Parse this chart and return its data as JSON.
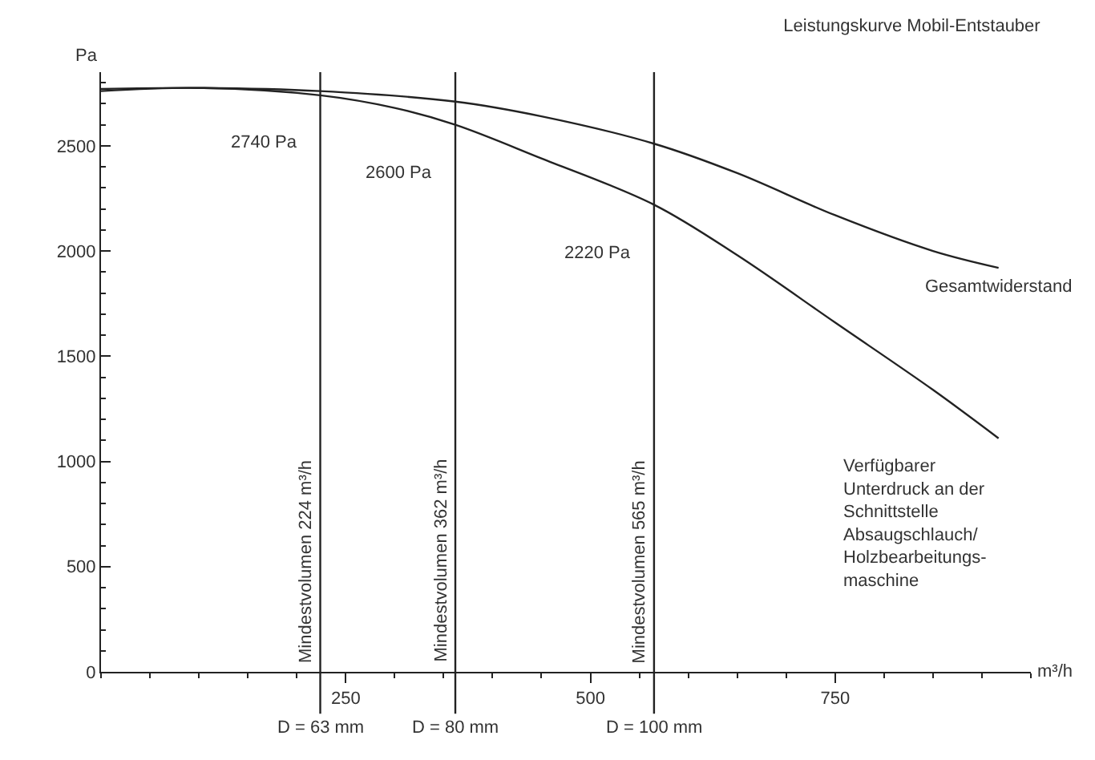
{
  "chart_data": {
    "type": "line",
    "title": "Leistungskurve Mobil-Entstauber",
    "xlabel": "m³/h",
    "ylabel": "Pa",
    "xlim": [
      0,
      950
    ],
    "xticks": [
      250,
      500,
      750
    ],
    "ylim": [
      0,
      2850
    ],
    "yticks": [
      0,
      500,
      1000,
      1500,
      2000,
      2500
    ],
    "legend": false,
    "marker": "none",
    "line_style": "solid",
    "series": [
      {
        "name": "Gesamtwiderstand",
        "color": "#222222",
        "x": [
          0,
          100,
          224,
          362,
          450,
          565,
          650,
          750,
          850,
          917
        ],
        "values": [
          2770,
          2775,
          2760,
          2710,
          2640,
          2510,
          2370,
          2170,
          2000,
          1920
        ]
      },
      {
        "name": "Verfügbarer\nUnterdruck an der\nSchnittstelle\nAbsaugschlauch/\nHolzbearbeitungs-\nmaschine",
        "color": "#222222",
        "x": [
          0,
          100,
          224,
          300,
          362,
          450,
          565,
          650,
          750,
          850,
          917
        ],
        "values": [
          2760,
          2775,
          2740,
          2680,
          2600,
          2440,
          2220,
          1980,
          1660,
          1340,
          1110
        ]
      }
    ],
    "ref_lines": [
      {
        "axis": "x",
        "value": 224,
        "label": "Mindestvolumen 224 m³/h",
        "color": "#222222"
      },
      {
        "axis": "x",
        "value": 362,
        "label": "Mindestvolumen 362 m³/h",
        "color": "#222222"
      },
      {
        "axis": "x",
        "value": 565,
        "label": "Mindestvolumen 565 m³/h",
        "color": "#222222"
      }
    ],
    "annotations": [
      {
        "text": "2740 Pa",
        "x": 224,
        "y": 2740
      },
      {
        "text": "2600 Pa",
        "x": 362,
        "y": 2600
      },
      {
        "text": "2220 Pa",
        "x": 565,
        "y": 2220
      },
      "D = 63 mm",
      "D = 80 mm",
      "D = 100 mm"
    ]
  }
}
